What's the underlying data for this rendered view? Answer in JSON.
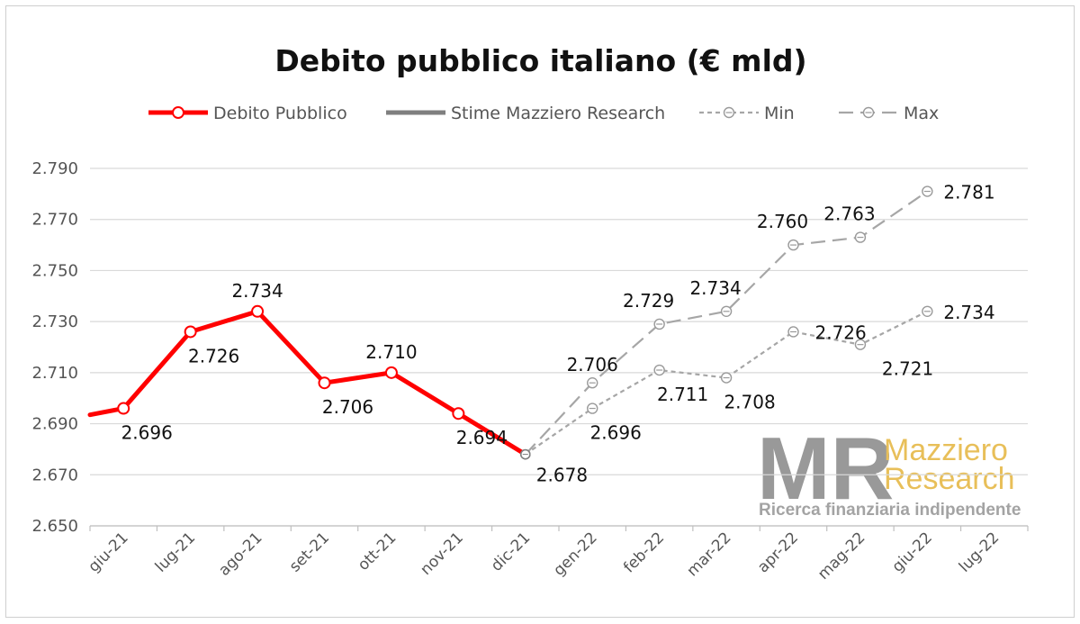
{
  "chart_data": {
    "type": "line",
    "title": "Debito pubblico italiano (€ mld)",
    "xlabel": "",
    "ylabel": "",
    "categories": [
      "giu-21",
      "lug-21",
      "ago-21",
      "set-21",
      "ott-21",
      "nov-21",
      "dic-21",
      "gen-22",
      "feb-22",
      "mar-22",
      "apr-22",
      "mag-22",
      "giu-22",
      "lug-22"
    ],
    "ylim": [
      2650,
      2790
    ],
    "yticks": [
      2650,
      2670,
      2690,
      2710,
      2730,
      2750,
      2770,
      2790
    ],
    "ytick_labels": [
      "2.650",
      "2.670",
      "2.690",
      "2.710",
      "2.730",
      "2.750",
      "2.770",
      "2.790"
    ],
    "grid": true,
    "legend_position": "top",
    "series": [
      {
        "name": "Debito Pubblico",
        "color": "#ff0000",
        "style": "solid",
        "lead_in_value": 2691,
        "points": [
          {
            "cat": 0,
            "value": 2696,
            "label": "2.696"
          },
          {
            "cat": 1,
            "value": 2726,
            "label": "2.726"
          },
          {
            "cat": 2,
            "value": 2734,
            "label": "2.734"
          },
          {
            "cat": 3,
            "value": 2706,
            "label": "2.706"
          },
          {
            "cat": 4,
            "value": 2710,
            "label": "2.710"
          },
          {
            "cat": 5,
            "value": 2694,
            "label": "2.694"
          },
          {
            "cat": 6,
            "value": 2678,
            "label": "2.678"
          }
        ]
      },
      {
        "name": "Stime Mazziero Research",
        "color": "#7f7f7f",
        "style": "solid",
        "points": []
      },
      {
        "name": "Min",
        "color": "#a6a6a6",
        "style": "short-dash",
        "points": [
          {
            "cat": 6,
            "value": 2678,
            "label": ""
          },
          {
            "cat": 7,
            "value": 2696,
            "label": "2.696"
          },
          {
            "cat": 8,
            "value": 2711,
            "label": "2.711"
          },
          {
            "cat": 9,
            "value": 2708,
            "label": "2.708"
          },
          {
            "cat": 10,
            "value": 2726,
            "label": "2.726"
          },
          {
            "cat": 11,
            "value": 2721,
            "label": "2.721"
          },
          {
            "cat": 12,
            "value": 2734,
            "label": "2.734"
          }
        ]
      },
      {
        "name": "Max",
        "color": "#a6a6a6",
        "style": "long-dash",
        "points": [
          {
            "cat": 6,
            "value": 2678,
            "label": ""
          },
          {
            "cat": 7,
            "value": 2706,
            "label": "2.706"
          },
          {
            "cat": 8,
            "value": 2729,
            "label": "2.729"
          },
          {
            "cat": 9,
            "value": 2734,
            "label": "2.734"
          },
          {
            "cat": 10,
            "value": 2760,
            "label": "2.760"
          },
          {
            "cat": 11,
            "value": 2763,
            "label": "2.763"
          },
          {
            "cat": 12,
            "value": 2781,
            "label": "2.781"
          }
        ]
      }
    ]
  },
  "watermark": {
    "monogram": "MR",
    "name_line1": "Mazziero",
    "name_line2": "Research",
    "tagline": "Ricerca finanziaria indipendente"
  }
}
